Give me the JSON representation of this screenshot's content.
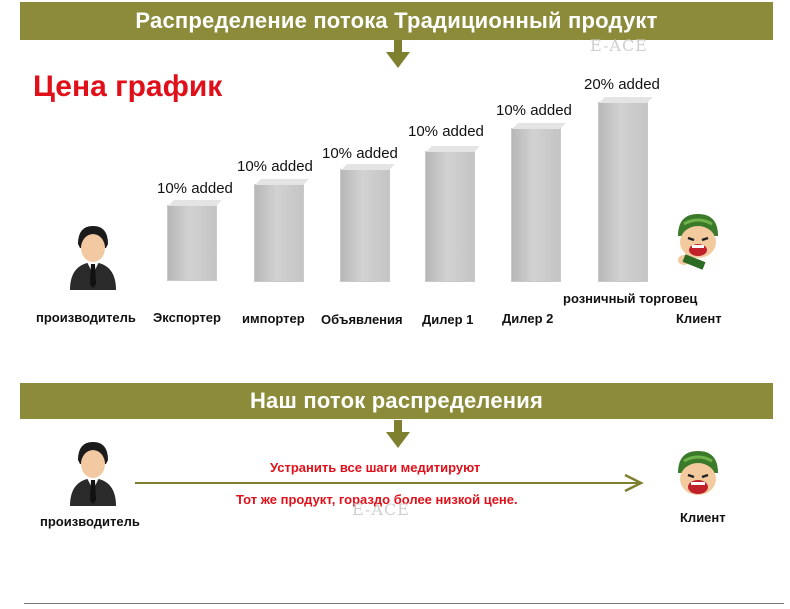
{
  "traditional": {
    "banner": "Распределение потока Традиционный продукт",
    "title": "Цена график",
    "stages": [
      {
        "label": "производитель"
      },
      {
        "label": "Экспортер",
        "added": "10% added"
      },
      {
        "label": "импортер",
        "added": "10% added"
      },
      {
        "label": "Объявления",
        "added": "10% added"
      },
      {
        "label": "Дилер 1",
        "added": "10% added"
      },
      {
        "label": "Дилер 2",
        "added": "10% added"
      },
      {
        "label": "розничный торговец",
        "added": "20% added"
      },
      {
        "label": "Клиент"
      }
    ]
  },
  "ours": {
    "banner": "Наш поток распределения",
    "producer": "производитель",
    "client": "Клиент",
    "line1": "Устранить все шаги медитируют",
    "line2": "Тот же продукт, гораздо более низкой цене."
  },
  "watermark": "E-ACE",
  "colors": {
    "banner": "#8b8b3a",
    "arrow": "#7f7f30",
    "accent_red": "#e0101a",
    "bar": "#c8c8c8"
  },
  "icons": [
    "businessman-icon",
    "happy-customer-icon",
    "down-arrow-icon",
    "right-arrow-icon"
  ]
}
